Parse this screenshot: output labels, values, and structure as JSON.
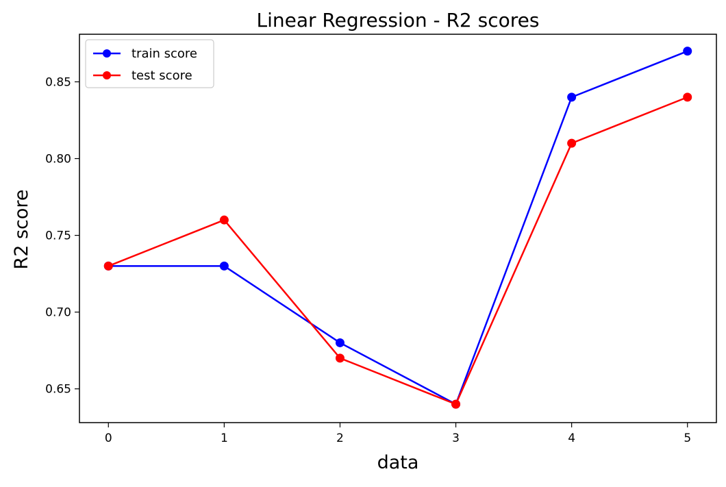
{
  "chart_data": {
    "type": "line",
    "title": "Linear Regression - R2 scores",
    "xlabel": "data",
    "ylabel": "R2 score",
    "x": [
      0,
      1,
      2,
      3,
      4,
      5
    ],
    "xticks": [
      "0",
      "1",
      "2",
      "3",
      "4",
      "5"
    ],
    "yticks": [
      "0.65",
      "0.70",
      "0.75",
      "0.80",
      "0.85"
    ],
    "xlim": [
      -0.25,
      5.25
    ],
    "ylim": [
      0.628,
      0.881
    ],
    "grid": false,
    "legend_position": "top-left",
    "series": [
      {
        "name": "train score",
        "color": "#0000ff",
        "marker": "circle",
        "values": [
          0.73,
          0.73,
          0.68,
          0.64,
          0.84,
          0.87
        ]
      },
      {
        "name": "test score",
        "color": "#ff0000",
        "marker": "circle",
        "values": [
          0.73,
          0.76,
          0.67,
          0.64,
          0.81,
          0.84
        ]
      }
    ]
  }
}
